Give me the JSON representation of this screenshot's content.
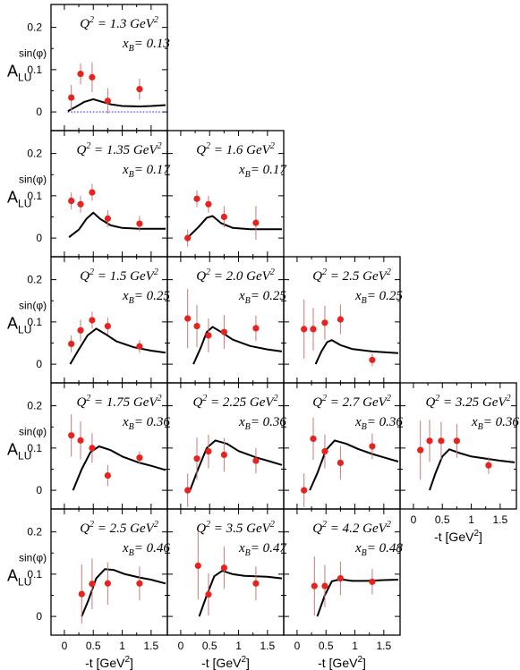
{
  "chart_data": {
    "type": "scatter",
    "layout": "triangular grid of panels, 5 rows",
    "x_axis": {
      "label": "-t [GeV",
      "label_exp": "2",
      "label_close": "]",
      "range": [
        -0.2,
        1.75
      ],
      "ticks": [
        "0",
        "0.5",
        "1",
        "1.5"
      ]
    },
    "y_axis": {
      "label": "A",
      "label_sub": "LU",
      "label_sup": "sin(φ)",
      "range": [
        -0.04,
        0.25
      ],
      "ticks": [
        "0",
        "0.1",
        "0.2"
      ]
    },
    "colors": {
      "points": "#e8231e",
      "error_bars": "#c87878",
      "curve": "#000000",
      "zero_line": "#4444ff"
    },
    "panels": [
      {
        "row": 0,
        "col": 0,
        "q2": "= 1.3 GeV",
        "xb": "= 0.13",
        "points": [
          [
            0.12,
            0.034,
            0.03
          ],
          [
            0.28,
            0.09,
            0.025
          ],
          [
            0.48,
            0.082,
            0.035
          ],
          [
            0.75,
            0.026,
            0.03
          ],
          [
            1.3,
            0.054,
            0.025
          ]
        ],
        "curve": [
          [
            0.06,
            0.002
          ],
          [
            0.2,
            0.012
          ],
          [
            0.35,
            0.024
          ],
          [
            0.5,
            0.03
          ],
          [
            0.65,
            0.024
          ],
          [
            0.8,
            0.018
          ],
          [
            1.0,
            0.014
          ],
          [
            1.3,
            0.013
          ],
          [
            1.5,
            0.014
          ],
          [
            1.75,
            0.016
          ]
        ],
        "zero_line": [
          0.06,
          1.75
        ]
      },
      {
        "row": 1,
        "col": 0,
        "q2": "= 1.35 GeV",
        "xb": "= 0.17",
        "points": [
          [
            0.12,
            0.088,
            0.02
          ],
          [
            0.28,
            0.08,
            0.02
          ],
          [
            0.48,
            0.108,
            0.02
          ],
          [
            0.75,
            0.046,
            0.02
          ],
          [
            1.3,
            0.034,
            0.018
          ]
        ],
        "curve": [
          [
            0.08,
            0.002
          ],
          [
            0.25,
            0.02
          ],
          [
            0.38,
            0.045
          ],
          [
            0.5,
            0.06
          ],
          [
            0.62,
            0.045
          ],
          [
            0.8,
            0.03
          ],
          [
            1.0,
            0.024
          ],
          [
            1.3,
            0.022
          ],
          [
            1.75,
            0.022
          ]
        ]
      },
      {
        "row": 1,
        "col": 1,
        "q2": "= 1.6 GeV",
        "xb": "= 0.17",
        "points": [
          [
            0.12,
            0.0,
            0.02
          ],
          [
            0.28,
            0.093,
            0.02
          ],
          [
            0.48,
            0.08,
            0.02
          ],
          [
            0.75,
            0.05,
            0.025
          ],
          [
            1.3,
            0.036,
            0.04
          ]
        ],
        "curve": [
          [
            0.12,
            0.001
          ],
          [
            0.3,
            0.025
          ],
          [
            0.45,
            0.048
          ],
          [
            0.55,
            0.052
          ],
          [
            0.7,
            0.035
          ],
          [
            0.9,
            0.024
          ],
          [
            1.2,
            0.021
          ],
          [
            1.75,
            0.021
          ]
        ]
      },
      {
        "row": 2,
        "col": 0,
        "q2": "= 1.5 GeV",
        "xb": "= 0.25",
        "points": [
          [
            0.12,
            0.048,
            0.02
          ],
          [
            0.28,
            0.08,
            0.025
          ],
          [
            0.48,
            0.104,
            0.02
          ],
          [
            0.75,
            0.09,
            0.02
          ],
          [
            1.3,
            0.042,
            0.015
          ]
        ],
        "curve": [
          [
            0.1,
            0.0
          ],
          [
            0.25,
            0.035
          ],
          [
            0.4,
            0.068
          ],
          [
            0.55,
            0.084
          ],
          [
            0.7,
            0.072
          ],
          [
            0.9,
            0.054
          ],
          [
            1.2,
            0.04
          ],
          [
            1.5,
            0.032
          ],
          [
            1.75,
            0.027
          ]
        ]
      },
      {
        "row": 2,
        "col": 1,
        "q2": "= 2.0 GeV",
        "xb": "= 0.25",
        "points": [
          [
            0.12,
            0.108,
            0.07
          ],
          [
            0.28,
            0.09,
            0.05
          ],
          [
            0.48,
            0.068,
            0.04
          ],
          [
            0.75,
            0.076,
            0.04
          ],
          [
            1.3,
            0.085,
            0.03
          ]
        ],
        "curve": [
          [
            0.22,
            0.0
          ],
          [
            0.35,
            0.04
          ],
          [
            0.45,
            0.076
          ],
          [
            0.55,
            0.088
          ],
          [
            0.7,
            0.076
          ],
          [
            0.9,
            0.058
          ],
          [
            1.2,
            0.043
          ],
          [
            1.5,
            0.035
          ],
          [
            1.75,
            0.03
          ]
        ]
      },
      {
        "row": 2,
        "col": 2,
        "q2": "= 2.5 GeV",
        "xb": "= 0.25",
        "points": [
          [
            0.12,
            0.083,
            0.07
          ],
          [
            0.28,
            0.083,
            0.05
          ],
          [
            0.48,
            0.098,
            0.04
          ],
          [
            0.75,
            0.106,
            0.035
          ],
          [
            1.3,
            0.01,
            0.015
          ]
        ],
        "curve": [
          [
            0.32,
            0.0
          ],
          [
            0.42,
            0.03
          ],
          [
            0.52,
            0.052
          ],
          [
            0.6,
            0.057
          ],
          [
            0.75,
            0.045
          ],
          [
            0.95,
            0.036
          ],
          [
            1.3,
            0.03
          ],
          [
            1.75,
            0.026
          ]
        ]
      },
      {
        "row": 3,
        "col": 0,
        "q2": "= 1.75 GeV",
        "xb": "= 0.36",
        "points": [
          [
            0.12,
            0.13,
            0.05
          ],
          [
            0.28,
            0.118,
            0.045
          ],
          [
            0.48,
            0.1,
            0.035
          ],
          [
            0.75,
            0.035,
            0.025
          ],
          [
            1.3,
            0.077,
            0.015
          ]
        ],
        "curve": [
          [
            0.15,
            0.0
          ],
          [
            0.3,
            0.05
          ],
          [
            0.45,
            0.09
          ],
          [
            0.6,
            0.104
          ],
          [
            0.8,
            0.095
          ],
          [
            1.0,
            0.08
          ],
          [
            1.3,
            0.065
          ],
          [
            1.5,
            0.058
          ],
          [
            1.75,
            0.048
          ]
        ]
      },
      {
        "row": 3,
        "col": 1,
        "q2": "= 2.25 GeV",
        "xb": "= 0.36",
        "points": [
          [
            0.12,
            0.0,
            0.04
          ],
          [
            0.28,
            0.075,
            0.05
          ],
          [
            0.48,
            0.092,
            0.04
          ],
          [
            0.75,
            0.084,
            0.04
          ],
          [
            1.3,
            0.07,
            0.03
          ]
        ],
        "curve": [
          [
            0.16,
            0.0
          ],
          [
            0.3,
            0.05
          ],
          [
            0.45,
            0.1
          ],
          [
            0.6,
            0.118
          ],
          [
            0.8,
            0.11
          ],
          [
            1.0,
            0.093
          ],
          [
            1.3,
            0.078
          ],
          [
            1.5,
            0.07
          ],
          [
            1.75,
            0.06
          ]
        ]
      },
      {
        "row": 3,
        "col": 2,
        "q2": "= 2.7 GeV",
        "xb": "= 0.36",
        "points": [
          [
            0.12,
            0.0,
            0.04
          ],
          [
            0.28,
            0.122,
            0.05
          ],
          [
            0.48,
            0.092,
            0.04
          ],
          [
            0.75,
            0.065,
            0.04
          ],
          [
            1.3,
            0.104,
            0.03
          ]
        ],
        "curve": [
          [
            0.22,
            0.0
          ],
          [
            0.35,
            0.04
          ],
          [
            0.5,
            0.095
          ],
          [
            0.65,
            0.118
          ],
          [
            0.85,
            0.11
          ],
          [
            1.05,
            0.098
          ],
          [
            1.3,
            0.086
          ],
          [
            1.5,
            0.078
          ],
          [
            1.75,
            0.068
          ]
        ]
      },
      {
        "row": 3,
        "col": 3,
        "q2": "= 3.25 GeV",
        "xb": "= 0.36",
        "points": [
          [
            0.12,
            0.095,
            0.07
          ],
          [
            0.28,
            0.117,
            0.05
          ],
          [
            0.48,
            0.117,
            0.045
          ],
          [
            0.75,
            0.117,
            0.04
          ],
          [
            1.3,
            0.059,
            0.02
          ]
        ],
        "curve": [
          [
            0.28,
            0.0
          ],
          [
            0.38,
            0.04
          ],
          [
            0.5,
            0.08
          ],
          [
            0.62,
            0.097
          ],
          [
            0.8,
            0.088
          ],
          [
            1.0,
            0.08
          ],
          [
            1.3,
            0.074
          ],
          [
            1.5,
            0.07
          ],
          [
            1.75,
            0.066
          ]
        ]
      },
      {
        "row": 4,
        "col": 0,
        "q2": "= 2.5 GeV",
        "xb": "= 0.46",
        "points": [
          [
            0.3,
            0.053,
            0.07
          ],
          [
            0.48,
            0.077,
            0.06
          ],
          [
            0.75,
            0.078,
            0.05
          ],
          [
            1.3,
            0.078,
            0.04
          ]
        ],
        "curve": [
          [
            0.3,
            0.0
          ],
          [
            0.42,
            0.04
          ],
          [
            0.55,
            0.09
          ],
          [
            0.7,
            0.112
          ],
          [
            0.85,
            0.11
          ],
          [
            1.05,
            0.1
          ],
          [
            1.3,
            0.092
          ],
          [
            1.5,
            0.087
          ],
          [
            1.75,
            0.078
          ]
        ]
      },
      {
        "row": 4,
        "col": 1,
        "q2": "= 3.5 GeV",
        "xb": "= 0.47",
        "points": [
          [
            0.3,
            0.12,
            0.08
          ],
          [
            0.48,
            0.052,
            0.05
          ],
          [
            0.75,
            0.115,
            0.05
          ],
          [
            1.3,
            0.078,
            0.04
          ]
        ],
        "curve": [
          [
            0.32,
            0.0
          ],
          [
            0.45,
            0.05
          ],
          [
            0.58,
            0.095
          ],
          [
            0.72,
            0.108
          ],
          [
            0.9,
            0.1
          ],
          [
            1.1,
            0.096
          ],
          [
            1.3,
            0.095
          ],
          [
            1.5,
            0.094
          ],
          [
            1.75,
            0.09
          ]
        ]
      },
      {
        "row": 4,
        "col": 2,
        "q2": "= 4.2 GeV",
        "xb": "= 0.48",
        "points": [
          [
            0.3,
            0.072,
            0.07
          ],
          [
            0.48,
            0.072,
            0.05
          ],
          [
            0.75,
            0.09,
            0.04
          ],
          [
            1.3,
            0.082,
            0.03
          ]
        ],
        "curve": [
          [
            0.35,
            0.0
          ],
          [
            0.48,
            0.05
          ],
          [
            0.6,
            0.083
          ],
          [
            0.75,
            0.088
          ],
          [
            0.95,
            0.084
          ],
          [
            1.2,
            0.084
          ],
          [
            1.5,
            0.086
          ],
          [
            1.75,
            0.087
          ]
        ]
      }
    ]
  }
}
